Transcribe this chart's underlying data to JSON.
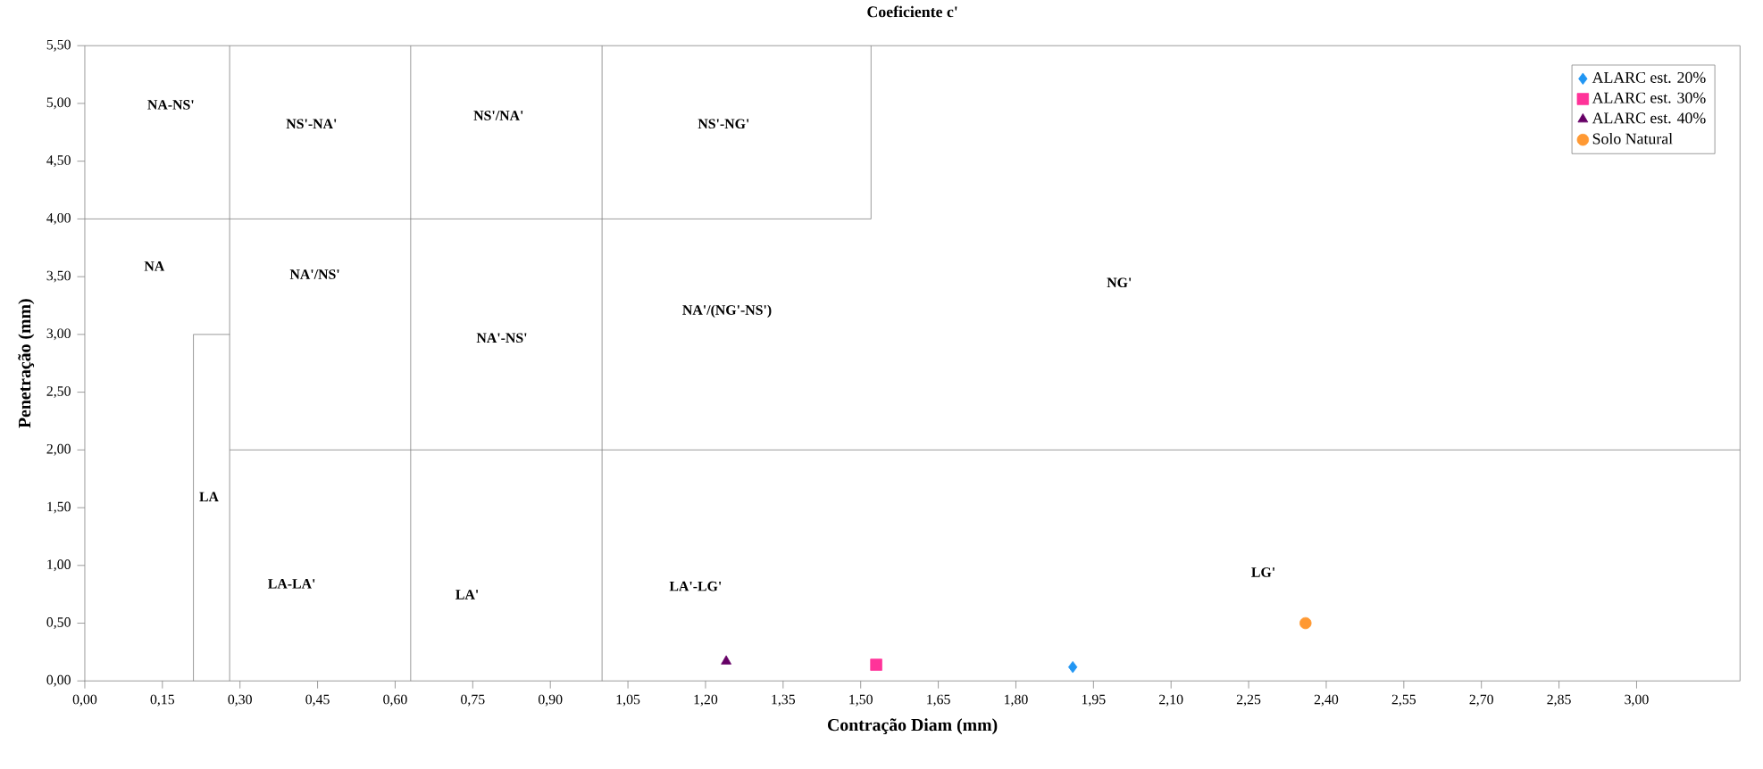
{
  "chart_data": {
    "type": "scatter",
    "xlabel": "Contração Diam (mm)",
    "ylabel": "Penetração (mm)",
    "xlim": [
      0,
      3.2
    ],
    "ylim": [
      0,
      5.5
    ],
    "xticks": [
      {
        "value": 0,
        "label": "0,00"
      },
      {
        "value": 0.15,
        "label": "0,15"
      },
      {
        "value": 0.3,
        "label": "0,30"
      },
      {
        "value": 0.45,
        "label": "0,45"
      },
      {
        "value": 0.6,
        "label": "0,60"
      },
      {
        "value": 0.75,
        "label": "0,75"
      },
      {
        "value": 0.9,
        "label": "0,90"
      },
      {
        "value": 1.05,
        "label": "1,05"
      },
      {
        "value": 1.2,
        "label": "1,20"
      },
      {
        "value": 1.35,
        "label": "1,35"
      },
      {
        "value": 1.5,
        "label": "1,50"
      },
      {
        "value": 1.65,
        "label": "1,65"
      },
      {
        "value": 1.8,
        "label": "1,80"
      },
      {
        "value": 1.95,
        "label": "1,95"
      },
      {
        "value": 2.1,
        "label": "2,10"
      },
      {
        "value": 2.25,
        "label": "2,25"
      },
      {
        "value": 2.4,
        "label": "2,40"
      },
      {
        "value": 2.55,
        "label": "2,55"
      },
      {
        "value": 2.7,
        "label": "2,70"
      },
      {
        "value": 2.85,
        "label": "2,85"
      },
      {
        "value": 3.0,
        "label": "3,00"
      }
    ],
    "yticks": [
      {
        "value": 0,
        "label": "0,00"
      },
      {
        "value": 0.5,
        "label": "0,50"
      },
      {
        "value": 1.0,
        "label": "1,00"
      },
      {
        "value": 1.5,
        "label": "1,50"
      },
      {
        "value": 2.0,
        "label": "2,00"
      },
      {
        "value": 2.5,
        "label": "2,50"
      },
      {
        "value": 3.0,
        "label": "3,00"
      },
      {
        "value": 3.5,
        "label": "3,50"
      },
      {
        "value": 4.0,
        "label": "4,00"
      },
      {
        "value": 4.5,
        "label": "4,50"
      },
      {
        "value": 5.0,
        "label": "5,00"
      },
      {
        "value": 5.5,
        "label": "5,50"
      }
    ],
    "legend": "top right",
    "ref_lines": [
      {
        "axis": "x",
        "value": 0.28,
        "color": "#808080"
      },
      {
        "axis": "x",
        "value": 0.63,
        "color": "#808080"
      },
      {
        "axis": "x",
        "value": 1.0,
        "color": "#808080"
      }
    ],
    "series": [
      {
        "type": "line",
        "color": "#808080",
        "x": [
          0.0,
          1.52
        ],
        "values": [
          4.0,
          4.0
        ]
      },
      {
        "type": "line",
        "color": "#808080",
        "x": [
          1.52,
          1.52
        ],
        "values": [
          4.0,
          5.5
        ]
      },
      {
        "type": "line",
        "color": "#808080",
        "x": [
          0.28,
          3.2
        ],
        "values": [
          2.0,
          2.0
        ]
      },
      {
        "type": "line",
        "color": "#808080",
        "x": [
          0.21,
          0.21,
          0.28
        ],
        "values": [
          0.0,
          3.0,
          3.0
        ]
      },
      {
        "name": "ALARC est. 20%",
        "color": "#2196f3",
        "marker": "diamond",
        "x": [
          1.91
        ],
        "values": [
          0.12
        ]
      },
      {
        "name": "ALARC est. 30%",
        "color": "#ff3399",
        "marker": "square",
        "x": [
          1.53
        ],
        "values": [
          0.14
        ]
      },
      {
        "name": "ALARC est. 40%",
        "color": "#660066",
        "marker": "triangle",
        "x": [
          1.24
        ],
        "values": [
          0.17
        ]
      },
      {
        "name": "Solo Natural",
        "color": "#ff9933",
        "marker": "circle",
        "x": [
          2.36
        ],
        "values": [
          0.5
        ]
      }
    ],
    "annotations": [
      "Coeficiente c'",
      "NA-NS'",
      "NS'-NA'",
      "NS'/NA'",
      "NS'-NG'",
      "NA",
      "NA'/NS'",
      "NA'-NS'",
      "NA'/(NG'-NS')",
      "NG'",
      "LA",
      "LA-LA'",
      "LA'",
      "LA'-LG'",
      "LG'"
    ]
  }
}
